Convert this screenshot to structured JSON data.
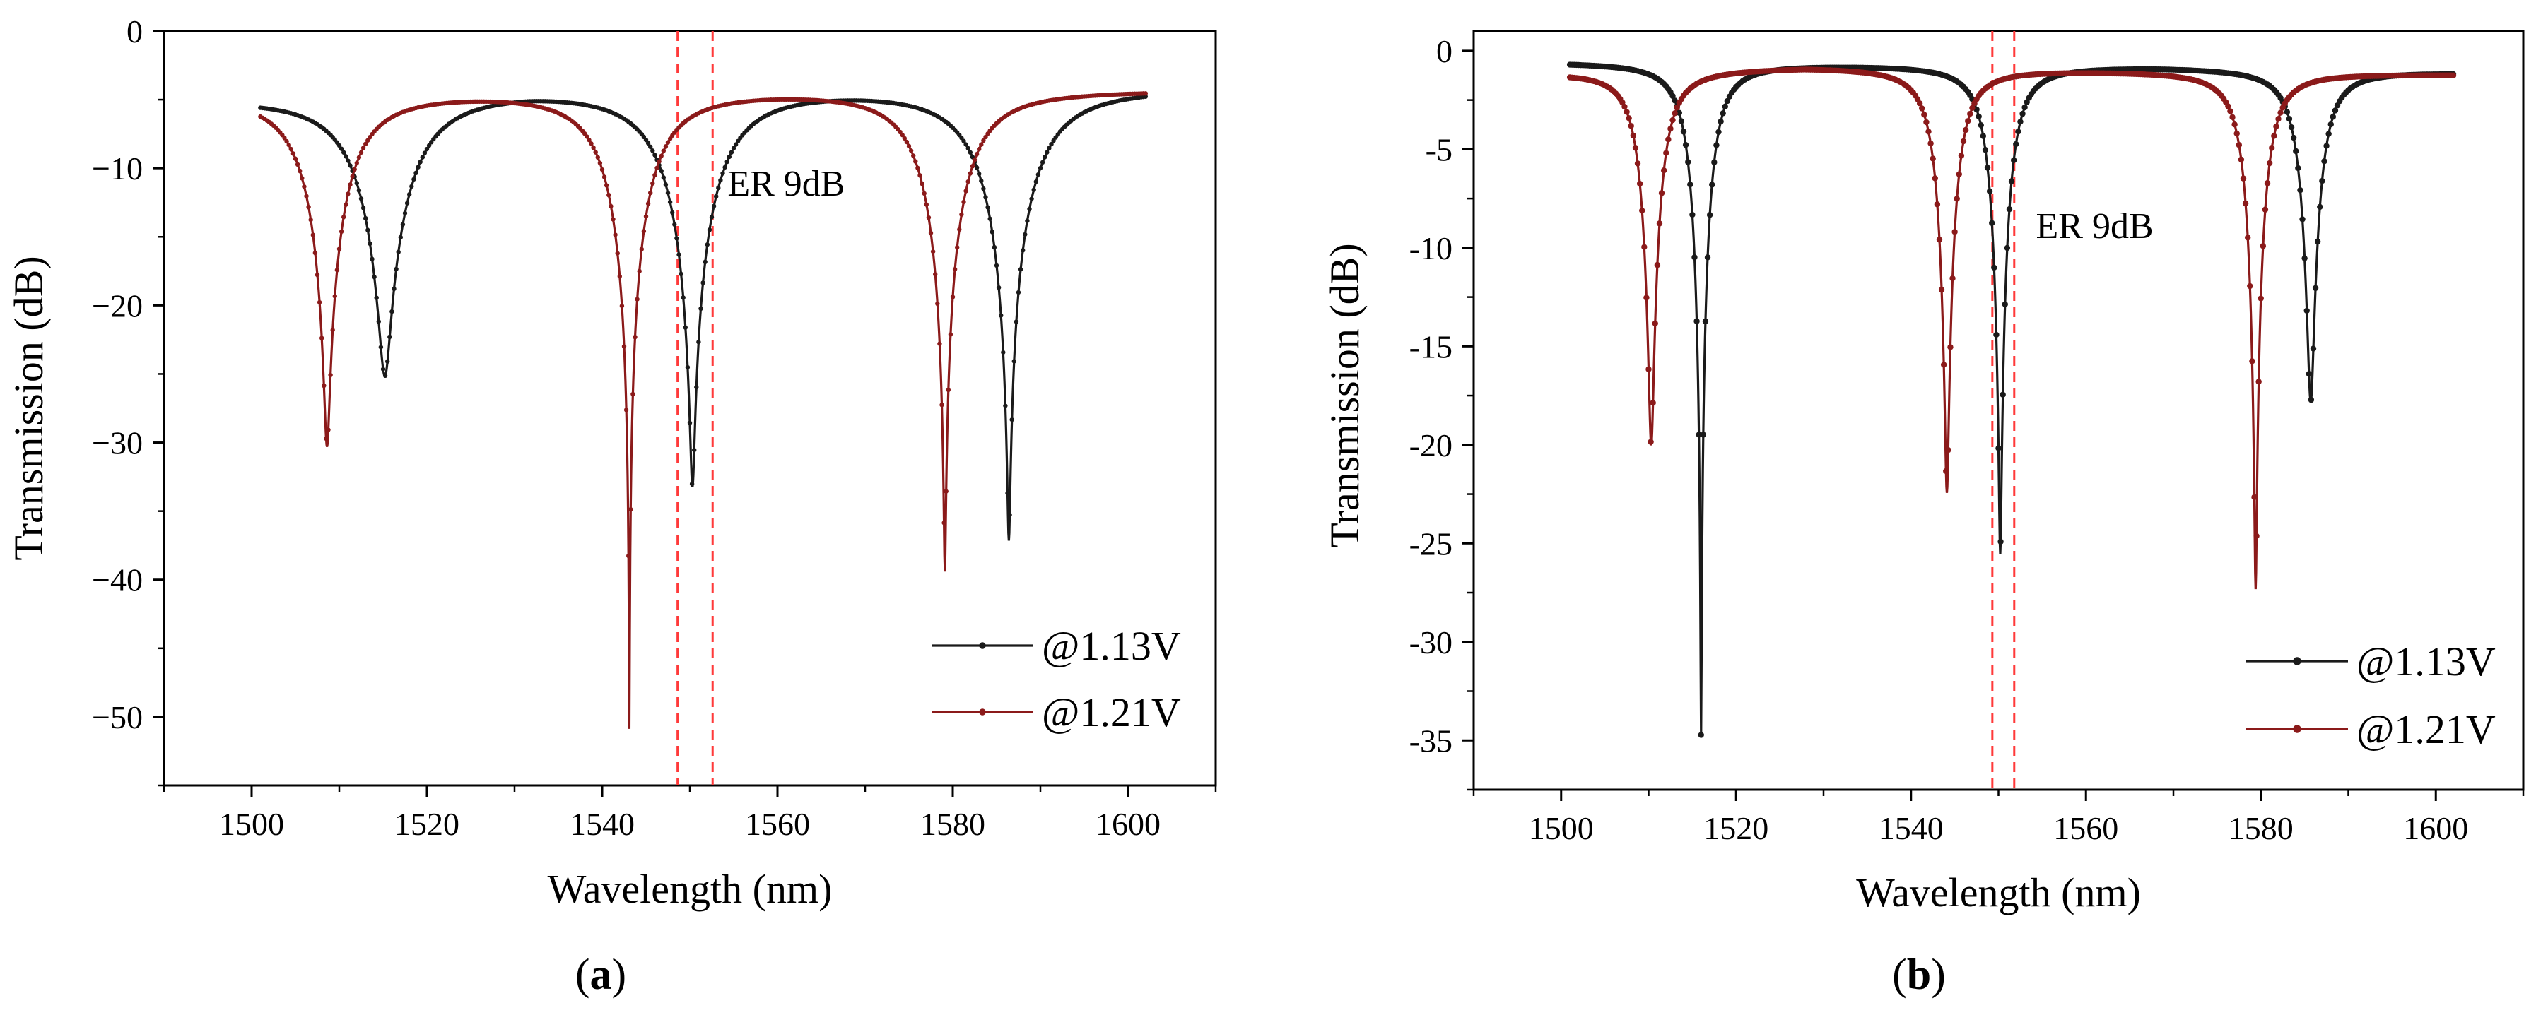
{
  "chart_data": [
    {
      "type": "line",
      "panel_label": {
        "open": "(",
        "letter": "a",
        "close": ")"
      },
      "xlabel": "Wavelength (nm)",
      "ylabel": "Transmission (dB)",
      "xlim": [
        1490,
        1610
      ],
      "ylim": [
        -55,
        0
      ],
      "xticks": [
        1500,
        1520,
        1540,
        1560,
        1580,
        1600
      ],
      "yticks": [
        0,
        -10,
        -20,
        -30,
        -40,
        -50
      ],
      "ytick_labels": [
        "0",
        "−10",
        "−20",
        "−30",
        "−40",
        "−50"
      ],
      "grid": false,
      "legend_position": "bottom-right",
      "annotation": {
        "text": "ER 9dB",
        "x": 1561,
        "y": -12
      },
      "vlines": [
        1548.6,
        1552.6
      ],
      "vline_color": "#ff3a3a",
      "series": [
        {
          "name": "@1.13V",
          "color": "#1a1a1a",
          "range": [
            1501,
            1602
          ],
          "baseline": [
            [
              1501,
              -4.8
            ],
            [
              1532,
              -4.1
            ],
            [
              1568,
              -4.1
            ],
            [
              1602,
              -4.1
            ]
          ],
          "dips": [
            {
              "x": 1515.2,
              "depth": -25.0,
              "width": 6.0
            },
            {
              "x": 1550.3,
              "depth": -33.0,
              "width": 6.0
            },
            {
              "x": 1586.4,
              "depth": -37.0,
              "width": 6.0
            }
          ]
        },
        {
          "name": "@1.21V",
          "color": "#8b1a1a",
          "range": [
            1501,
            1602
          ],
          "baseline": [
            [
              1501,
              -4.6
            ],
            [
              1526,
              -4.4
            ],
            [
              1560,
              -4.3
            ],
            [
              1602,
              -4.3
            ]
          ],
          "dips": [
            {
              "x": 1508.6,
              "depth": -30.2,
              "width": 5.0
            },
            {
              "x": 1543.1,
              "depth": -50.7,
              "width": 5.0
            },
            {
              "x": 1579.1,
              "depth": -39.3,
              "width": 5.0
            }
          ]
        }
      ]
    },
    {
      "type": "line",
      "panel_label": {
        "open": "(",
        "letter": "b",
        "close": ")"
      },
      "xlabel": "Wavelength (nm)",
      "ylabel": "Transmission (dB)",
      "xlim": [
        1490,
        1610
      ],
      "ylim": [
        -37.5,
        1
      ],
      "xticks": [
        1500,
        1520,
        1540,
        1560,
        1580,
        1600
      ],
      "yticks": [
        0,
        -5,
        -10,
        -15,
        -20,
        -25,
        -30,
        -35
      ],
      "ytick_labels": [
        "0",
        "-5",
        "-10",
        "-15",
        "-20",
        "-25",
        "-30",
        "-35"
      ],
      "grid": false,
      "legend_position": "bottom-right",
      "annotation": {
        "text": "ER 9dB",
        "x": 1561,
        "y": -9.5
      },
      "vlines": [
        1549.3,
        1551.8
      ],
      "vline_color": "#ff3a3a",
      "series": [
        {
          "name": "@1.13V",
          "color": "#1a1a1a",
          "range": [
            1501,
            1602
          ],
          "baseline": [
            [
              1501,
              -0.6
            ],
            [
              1532,
              -0.7
            ],
            [
              1568,
              -0.8
            ],
            [
              1602,
              -1.1
            ]
          ],
          "dips": [
            {
              "x": 1516.0,
              "depth": -34.7,
              "width": 2.2
            },
            {
              "x": 1550.2,
              "depth": -25.5,
              "width": 2.2
            },
            {
              "x": 1585.7,
              "depth": -17.8,
              "width": 2.2
            }
          ]
        },
        {
          "name": "@1.21V",
          "color": "#8b1a1a",
          "range": [
            1501,
            1602
          ],
          "baseline": [
            [
              1501,
              -1.1
            ],
            [
              1528,
              -0.8
            ],
            [
              1562,
              -1.0
            ],
            [
              1602,
              -1.2
            ]
          ],
          "dips": [
            {
              "x": 1510.3,
              "depth": -20.0,
              "width": 2.2
            },
            {
              "x": 1544.1,
              "depth": -22.4,
              "width": 2.2
            },
            {
              "x": 1579.4,
              "depth": -27.3,
              "width": 2.2
            }
          ]
        }
      ]
    }
  ]
}
